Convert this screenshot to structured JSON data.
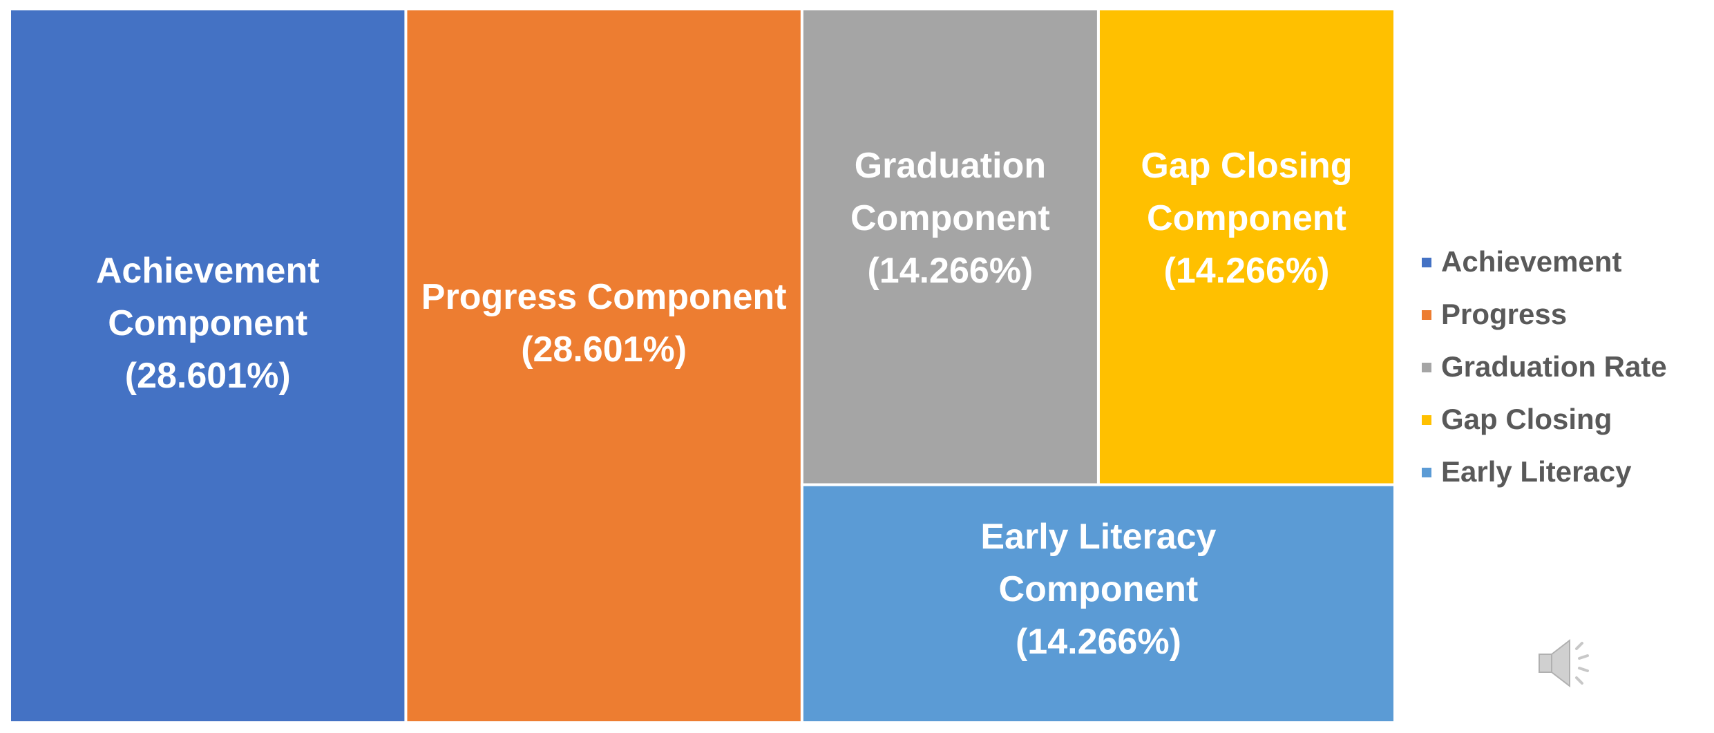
{
  "chart_data": {
    "type": "treemap",
    "categories": [
      "Achievement",
      "Progress",
      "Graduation Rate",
      "Gap Closing",
      "Early Literacy"
    ],
    "labels": [
      "Achievement Component",
      "Progress Component",
      "Graduation Component",
      "Gap Closing Component",
      "Early Literacy Component"
    ],
    "values": [
      28.601,
      28.601,
      14.266,
      14.266,
      14.266
    ],
    "value_labels": [
      "(28.601%)",
      "(28.601%)",
      "(14.266%)",
      "(14.266%)",
      "(14.266%)"
    ],
    "colors": [
      "#4472c4",
      "#ed7d31",
      "#a5a5a5",
      "#ffc000",
      "#5b9bd5"
    ],
    "legend": "right"
  }
}
